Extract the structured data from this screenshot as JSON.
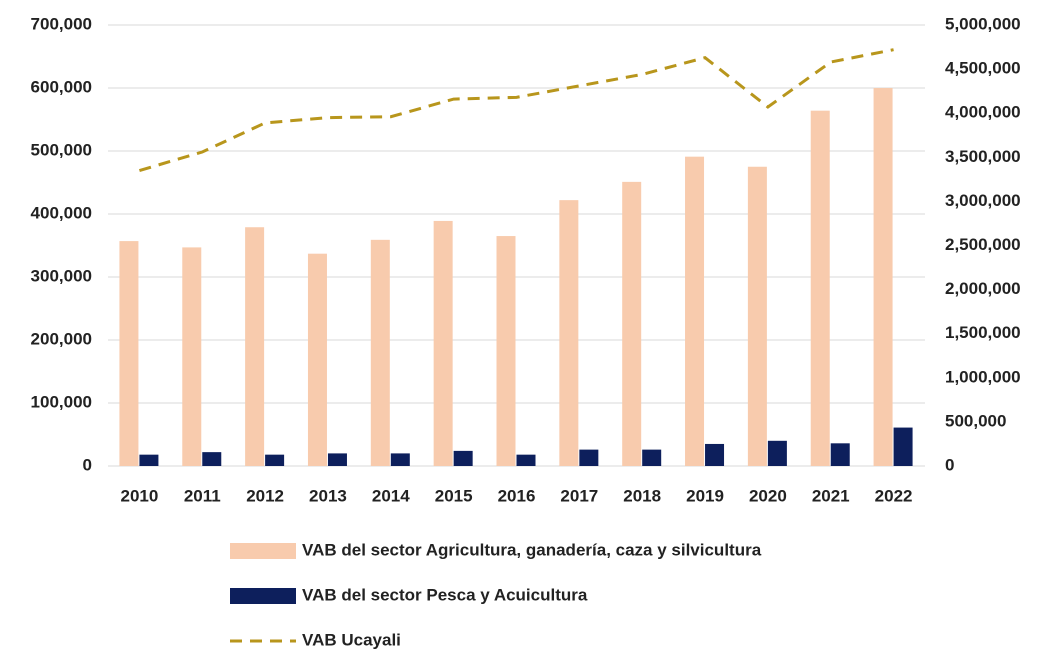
{
  "chart_data": {
    "type": "bar",
    "categories": [
      "2010",
      "2011",
      "2012",
      "2013",
      "2014",
      "2015",
      "2016",
      "2017",
      "2018",
      "2019",
      "2020",
      "2021",
      "2022"
    ],
    "series": [
      {
        "name": "VAB del sector Agricultura, ganadería, caza y silvicultura",
        "color": "#f8cbad",
        "values": [
          357000,
          347000,
          379000,
          337000,
          359000,
          389000,
          365000,
          422000,
          451000,
          491000,
          475000,
          564000,
          600000
        ]
      },
      {
        "name": "VAB del sector Pesca y Acuicultura",
        "color": "#0d1f5c",
        "values": [
          18000,
          22000,
          18000,
          20000,
          20000,
          24000,
          18000,
          26000,
          26000,
          35000,
          40000,
          36000,
          61000
        ]
      },
      {
        "name": "VAB Ucayali",
        "color": "#b8961c",
        "type": "line",
        "line_style": "dashed",
        "axis": "y2",
        "values": [
          3350000,
          3560000,
          3890000,
          3950000,
          3960000,
          4160000,
          4180000,
          4310000,
          4440000,
          4630000,
          4070000,
          4580000,
          4720000
        ]
      }
    ],
    "ylim": [
      0,
      700000
    ],
    "yticks": [
      0,
      {
        "value": 100000,
        "label": "100,000"
      },
      {
        "value": 200000,
        "label": "200,000"
      },
      {
        "value": 300000,
        "label": "300,000"
      },
      {
        "value": 400000,
        "label": "400,000"
      },
      {
        "value": 500000,
        "label": "500,000"
      },
      {
        "value": 600000,
        "label": "600,000"
      },
      {
        "value": 700000,
        "label": "700,000"
      }
    ],
    "y2lim": [
      0,
      5000000
    ],
    "y2ticks": [
      0,
      {
        "value": 500000,
        "label": "500,000"
      },
      {
        "value": 1000000,
        "label": "1,000,000"
      },
      {
        "value": 1500000,
        "label": "1,500,000"
      },
      {
        "value": 2000000,
        "label": "2,000,000"
      },
      {
        "value": 2500000,
        "label": "2,500,000"
      },
      {
        "value": 3000000,
        "label": "3,000,000"
      },
      {
        "value": 3500000,
        "label": "3,500,000"
      },
      {
        "value": 4000000,
        "label": "4,000,000"
      },
      {
        "value": 4500000,
        "label": "4,500,000"
      },
      {
        "value": 5000000,
        "label": "5,000,000"
      }
    ],
    "grid": true,
    "legend": "bottom"
  }
}
